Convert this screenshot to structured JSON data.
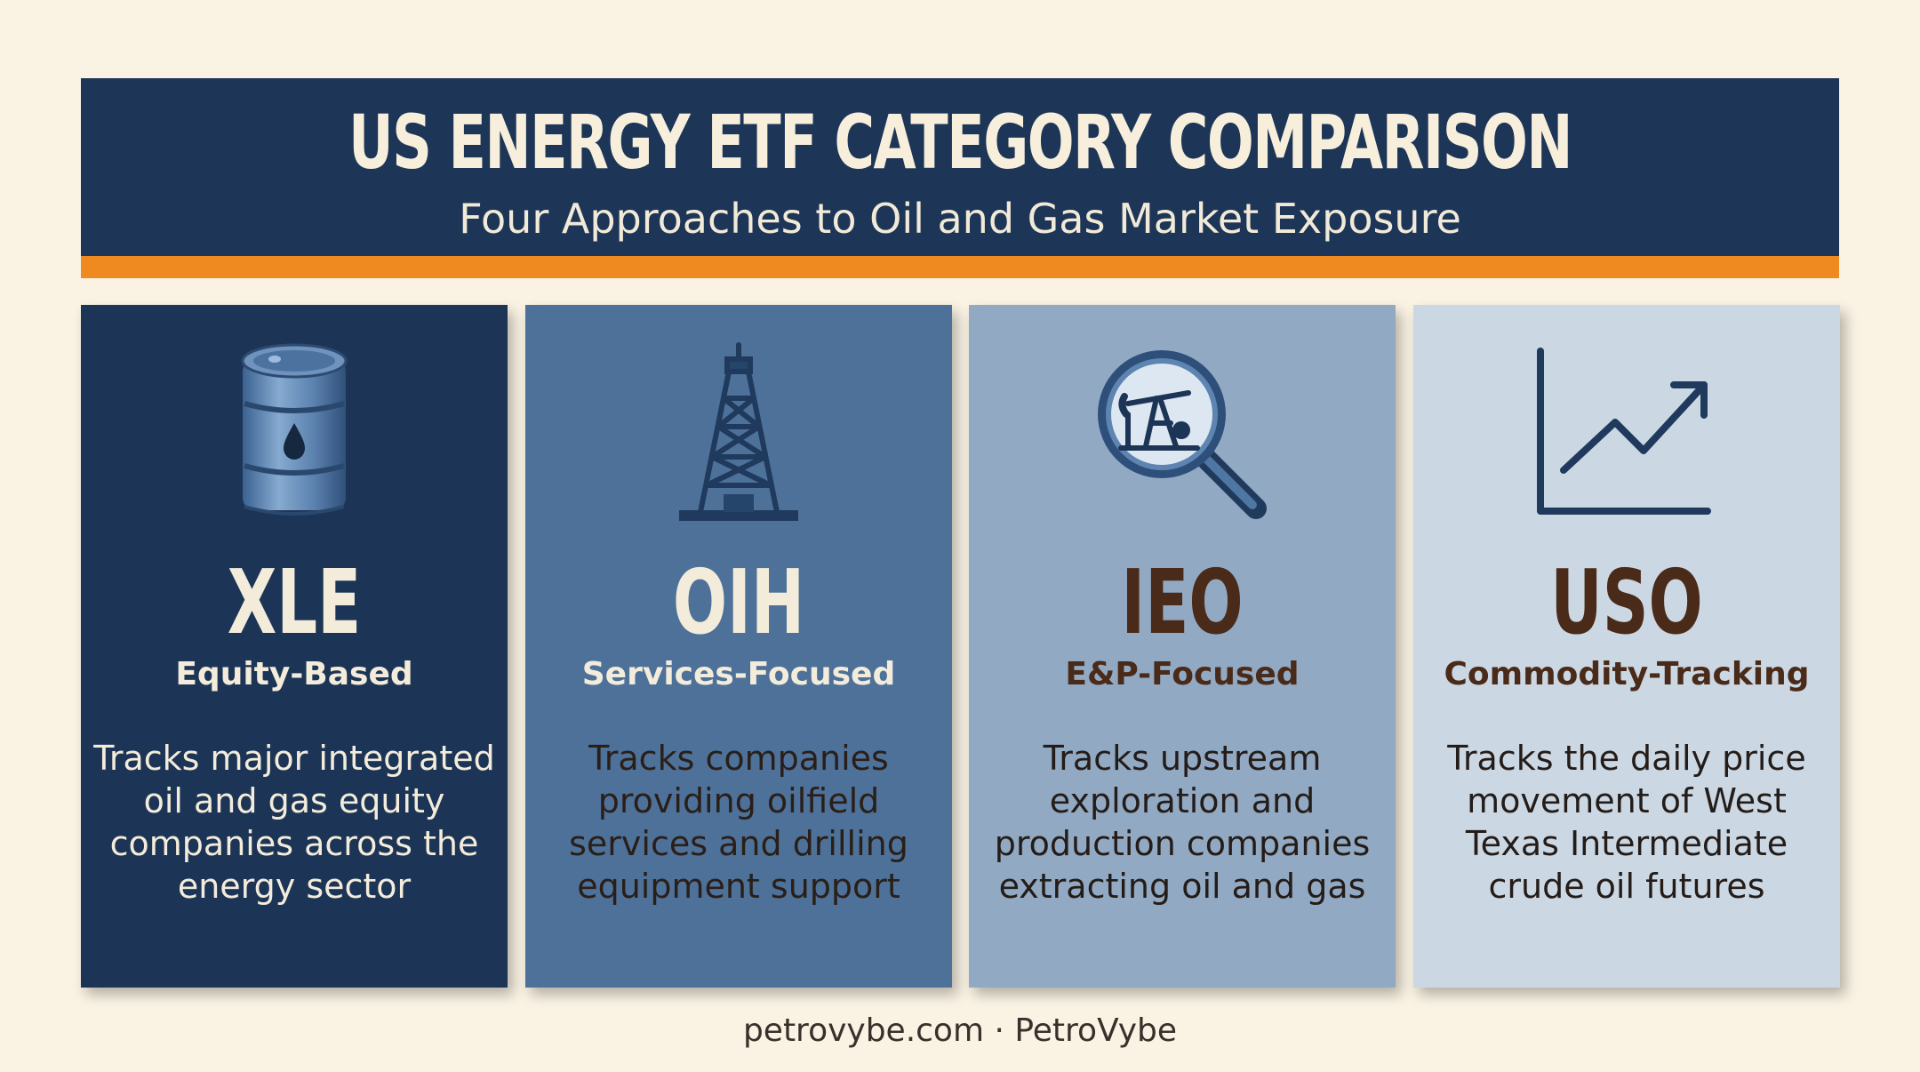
{
  "header": {
    "title": "US ENERGY ETF CATEGORY COMPARISON",
    "subtitle": "Four Approaches to Oil and Gas Market Exposure"
  },
  "cards": [
    {
      "icon": "oil-barrel-icon",
      "ticker": "XLE",
      "category": "Equity-Based",
      "description": "Tracks major integrated oil and gas equity companies across the energy sector"
    },
    {
      "icon": "drilling-rig-icon",
      "ticker": "OIH",
      "category": "Services-Focused",
      "description": "Tracks companies providing oilfield services and drilling equipment support"
    },
    {
      "icon": "magnifier-pumpjack-icon",
      "ticker": "IEO",
      "category": "E&P-Focused",
      "description": "Tracks upstream exploration and production companies extracting oil and gas"
    },
    {
      "icon": "line-chart-icon",
      "ticker": "USO",
      "category": "Commodity-Tracking",
      "description": "Tracks the daily price movement of West Texas Intermediate crude oil futures"
    }
  ],
  "footer": {
    "text": "petrovybe.com · PetroVybe"
  },
  "colors": {
    "header_bg": "#1d3557",
    "accent_bar": "#ef8a21",
    "page_bg": "#faf3e4",
    "card1_bg": "#1c3557",
    "card2_bg": "#4d7199",
    "card3_bg": "#92a9c3",
    "card4_bg": "#cbd8e4"
  }
}
